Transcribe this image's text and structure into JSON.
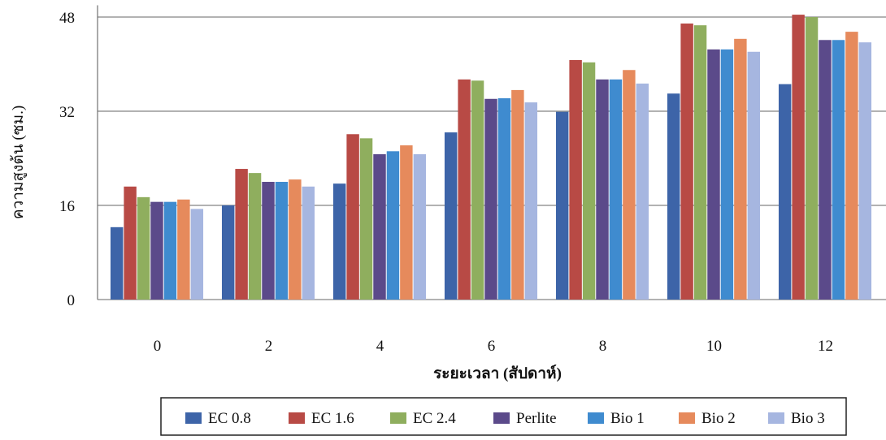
{
  "chart_data": {
    "type": "bar",
    "x_label": "ระยะเวลา (สัปดาห์)",
    "y_label": "ความสูงต้น (ซม.)",
    "categories": [
      "0",
      "2",
      "4",
      "6",
      "8",
      "10",
      "12"
    ],
    "series": [
      {
        "name": "EC 0.8",
        "color": "#3d64a8",
        "values": [
          12.3,
          16.0,
          19.7,
          28.4,
          31.9,
          35.0,
          36.6
        ]
      },
      {
        "name": "EC 1.6",
        "color": "#b84a45",
        "values": [
          19.2,
          22.2,
          28.1,
          37.4,
          40.7,
          46.9,
          48.4
        ]
      },
      {
        "name": "EC 2.4",
        "color": "#8fae5e",
        "values": [
          17.4,
          21.5,
          27.4,
          37.2,
          40.3,
          46.6,
          48.0
        ]
      },
      {
        "name": "Perlite",
        "color": "#5b4a8a",
        "values": [
          16.6,
          20.0,
          24.7,
          34.1,
          37.4,
          42.5,
          44.1
        ]
      },
      {
        "name": "Bio 1",
        "color": "#3f8bcf",
        "values": [
          16.6,
          20.0,
          25.2,
          34.2,
          37.4,
          42.5,
          44.1
        ]
      },
      {
        "name": "Bio 2",
        "color": "#e68a5c",
        "values": [
          17.0,
          20.4,
          26.2,
          35.6,
          39.0,
          44.3,
          45.5
        ]
      },
      {
        "name": "Bio 3",
        "color": "#a6b6e0",
        "values": [
          15.4,
          19.2,
          24.7,
          33.5,
          36.7,
          42.1,
          43.7
        ]
      }
    ],
    "ylim": [
      0,
      50
    ],
    "yticks": [
      0,
      16,
      32,
      48
    ],
    "grid": true,
    "legend": "bottom"
  }
}
